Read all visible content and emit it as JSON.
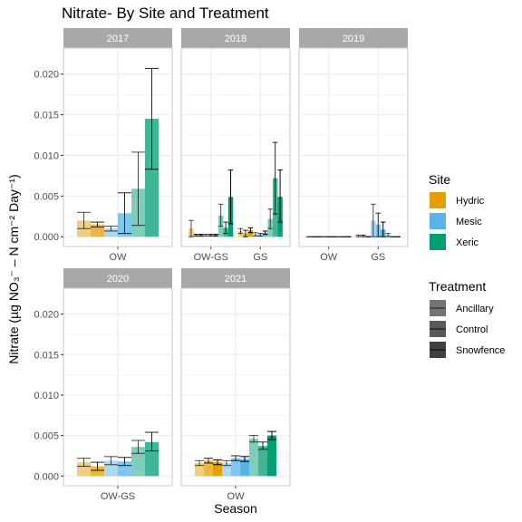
{
  "colors": {
    "Hydric": "#E69F00",
    "Mesic": "#56B4E9",
    "Xeric": "#009E73",
    "strip_bg": "#a8a8a8",
    "grid": "#ebebeb",
    "panel_border": "#c8c8c8"
  },
  "treatment_alpha": {
    "Ancillary": 0.5,
    "Control": 0.75,
    "Snowfence": 1.0
  },
  "chart_data": {
    "type": "bar",
    "title": "Nitrate- By Site and Treatment",
    "xlabel": "Season",
    "ylabel": "Nitrate (µg NO₃⁻ – N cm⁻² Day⁻¹)",
    "ylim": [
      -0.0012,
      0.0232
    ],
    "yticks": [
      0.0,
      0.005,
      0.01,
      0.015,
      0.02
    ],
    "ytick_labels": [
      "0.000",
      "0.005",
      "0.010",
      "0.015",
      "0.020"
    ],
    "grid": true,
    "site_order": [
      "Hydric",
      "Mesic",
      "Xeric"
    ],
    "treatment_order": [
      "Ancillary",
      "Control",
      "Snowfence"
    ],
    "legend_position": "right",
    "legends": {
      "site": {
        "title": "Site",
        "items": [
          "Hydric",
          "Mesic",
          "Xeric"
        ]
      },
      "treatment": {
        "title": "Treatment",
        "items": [
          "Ancillary",
          "Control",
          "Snowfence"
        ]
      }
    },
    "facets": [
      {
        "label": "2017",
        "categories": [
          "OW"
        ],
        "bars": [
          {
            "season": "OW",
            "site": "Hydric",
            "treatment": "Ancillary",
            "value": 0.002,
            "err_low": 0.001,
            "err_high": 0.003
          },
          {
            "season": "OW",
            "site": "Hydric",
            "treatment": "Control",
            "value": 0.0015,
            "err_low": 0.0012,
            "err_high": 0.0018
          },
          {
            "season": "OW",
            "site": "Mesic",
            "treatment": "Ancillary",
            "value": 0.001,
            "err_low": 0.0007,
            "err_high": 0.0013
          },
          {
            "season": "OW",
            "site": "Mesic",
            "treatment": "Control",
            "value": 0.0029,
            "err_low": 0.0004,
            "err_high": 0.0054
          },
          {
            "season": "OW",
            "site": "Xeric",
            "treatment": "Ancillary",
            "value": 0.0059,
            "err_low": 0.0014,
            "err_high": 0.0104
          },
          {
            "season": "OW",
            "site": "Xeric",
            "treatment": "Control",
            "value": 0.0145,
            "err_low": 0.0083,
            "err_high": 0.0207
          }
        ]
      },
      {
        "label": "2018",
        "categories": [
          "OW-GS",
          "GS"
        ],
        "bars": [
          {
            "season": "OW-GS",
            "site": "Hydric",
            "treatment": "Ancillary",
            "value": 0.001,
            "err_low": 0.0,
            "err_high": 0.002
          },
          {
            "season": "OW-GS",
            "site": "Hydric",
            "treatment": "Control",
            "value": 0.0002,
            "err_low": 0.0001,
            "err_high": 0.0003
          },
          {
            "season": "OW-GS",
            "site": "Hydric",
            "treatment": "Snowfence",
            "value": 0.0002,
            "err_low": 0.0001,
            "err_high": 0.0003
          },
          {
            "season": "OW-GS",
            "site": "Mesic",
            "treatment": "Ancillary",
            "value": 0.0002,
            "err_low": 0.0001,
            "err_high": 0.0003
          },
          {
            "season": "OW-GS",
            "site": "Mesic",
            "treatment": "Control",
            "value": 0.0002,
            "err_low": 0.0001,
            "err_high": 0.0003
          },
          {
            "season": "OW-GS",
            "site": "Mesic",
            "treatment": "Snowfence",
            "value": 0.0002,
            "err_low": 0.0001,
            "err_high": 0.0003
          },
          {
            "season": "OW-GS",
            "site": "Xeric",
            "treatment": "Ancillary",
            "value": 0.0026,
            "err_low": 0.0013,
            "err_high": 0.004
          },
          {
            "season": "OW-GS",
            "site": "Xeric",
            "treatment": "Control",
            "value": 0.0011,
            "err_low": 0.0004,
            "err_high": 0.0018
          },
          {
            "season": "OW-GS",
            "site": "Xeric",
            "treatment": "Snowfence",
            "value": 0.0049,
            "err_low": 0.0016,
            "err_high": 0.0082
          },
          {
            "season": "GS",
            "site": "Hydric",
            "treatment": "Ancillary",
            "value": 0.0007,
            "err_low": 0.0004,
            "err_high": 0.001
          },
          {
            "season": "GS",
            "site": "Hydric",
            "treatment": "Control",
            "value": 0.0004,
            "err_low": 0.0,
            "err_high": 0.0008
          },
          {
            "season": "GS",
            "site": "Hydric",
            "treatment": "Snowfence",
            "value": 0.0008,
            "err_low": 0.0005,
            "err_high": 0.0011
          },
          {
            "season": "GS",
            "site": "Mesic",
            "treatment": "Ancillary",
            "value": 0.0003,
            "err_low": 0.0001,
            "err_high": 0.0005
          },
          {
            "season": "GS",
            "site": "Mesic",
            "treatment": "Control",
            "value": 0.0002,
            "err_low": 0.0001,
            "err_high": 0.0004
          },
          {
            "season": "GS",
            "site": "Mesic",
            "treatment": "Snowfence",
            "value": 0.0005,
            "err_low": 0.0003,
            "err_high": 0.0007
          },
          {
            "season": "GS",
            "site": "Xeric",
            "treatment": "Ancillary",
            "value": 0.0022,
            "err_low": 0.001,
            "err_high": 0.0034
          },
          {
            "season": "GS",
            "site": "Xeric",
            "treatment": "Control",
            "value": 0.0072,
            "err_low": 0.0028,
            "err_high": 0.0116
          },
          {
            "season": "GS",
            "site": "Xeric",
            "treatment": "Snowfence",
            "value": 0.0049,
            "err_low": 0.0018,
            "err_high": 0.0082
          }
        ]
      },
      {
        "label": "2019",
        "categories": [
          "OW",
          "GS"
        ],
        "bars": [
          {
            "season": "OW",
            "site": "Hydric",
            "treatment": "Ancillary",
            "value": 0.0,
            "err_low": 0.0,
            "err_high": 0.0
          },
          {
            "season": "OW",
            "site": "Hydric",
            "treatment": "Control",
            "value": 0.0,
            "err_low": 0.0,
            "err_high": 0.0
          },
          {
            "season": "OW",
            "site": "Hydric",
            "treatment": "Snowfence",
            "value": 0.0,
            "err_low": 0.0,
            "err_high": 0.0
          },
          {
            "season": "OW",
            "site": "Mesic",
            "treatment": "Ancillary",
            "value": 0.0,
            "err_low": 0.0,
            "err_high": 0.0
          },
          {
            "season": "OW",
            "site": "Mesic",
            "treatment": "Control",
            "value": 0.0,
            "err_low": 0.0,
            "err_high": 0.0
          },
          {
            "season": "OW",
            "site": "Mesic",
            "treatment": "Snowfence",
            "value": 0.0,
            "err_low": 0.0,
            "err_high": 0.0
          },
          {
            "season": "OW",
            "site": "Xeric",
            "treatment": "Ancillary",
            "value": 0.0,
            "err_low": 0.0,
            "err_high": 0.0
          },
          {
            "season": "OW",
            "site": "Xeric",
            "treatment": "Control",
            "value": 0.0,
            "err_low": 0.0,
            "err_high": 0.0
          },
          {
            "season": "OW",
            "site": "Xeric",
            "treatment": "Snowfence",
            "value": 0.0,
            "err_low": 0.0,
            "err_high": 0.0
          },
          {
            "season": "GS",
            "site": "Hydric",
            "treatment": "Ancillary",
            "value": 0.0001,
            "err_low": 0.0,
            "err_high": 0.0002
          },
          {
            "season": "GS",
            "site": "Hydric",
            "treatment": "Control",
            "value": 0.0001,
            "err_low": 0.0,
            "err_high": 0.0002
          },
          {
            "season": "GS",
            "site": "Hydric",
            "treatment": "Snowfence",
            "value": 0.0,
            "err_low": 0.0,
            "err_high": 0.0
          },
          {
            "season": "GS",
            "site": "Mesic",
            "treatment": "Ancillary",
            "value": 0.002,
            "err_low": 0.0,
            "err_high": 0.004
          },
          {
            "season": "GS",
            "site": "Mesic",
            "treatment": "Control",
            "value": 0.0015,
            "err_low": 0.0,
            "err_high": 0.0029
          },
          {
            "season": "GS",
            "site": "Mesic",
            "treatment": "Snowfence",
            "value": 0.0009,
            "err_low": 0.0,
            "err_high": 0.0018
          },
          {
            "season": "GS",
            "site": "Xeric",
            "treatment": "Ancillary",
            "value": 0.0002,
            "err_low": 0.0,
            "err_high": 0.0004
          },
          {
            "season": "GS",
            "site": "Xeric",
            "treatment": "Control",
            "value": 0.0,
            "err_low": 0.0,
            "err_high": 0.0
          },
          {
            "season": "GS",
            "site": "Xeric",
            "treatment": "Snowfence",
            "value": 0.0,
            "err_low": 0.0,
            "err_high": 0.0
          }
        ]
      },
      {
        "label": "2020",
        "categories": [
          "OW-GS"
        ],
        "bars": [
          {
            "season": "OW-GS",
            "site": "Hydric",
            "treatment": "Ancillary",
            "value": 0.0017,
            "err_low": 0.0012,
            "err_high": 0.0022
          },
          {
            "season": "OW-GS",
            "site": "Hydric",
            "treatment": "Control",
            "value": 0.0012,
            "err_low": 0.0007,
            "err_high": 0.0017
          },
          {
            "season": "OW-GS",
            "site": "Mesic",
            "treatment": "Ancillary",
            "value": 0.0019,
            "err_low": 0.0014,
            "err_high": 0.0024
          },
          {
            "season": "OW-GS",
            "site": "Mesic",
            "treatment": "Control",
            "value": 0.0018,
            "err_low": 0.0013,
            "err_high": 0.0023
          },
          {
            "season": "OW-GS",
            "site": "Xeric",
            "treatment": "Ancillary",
            "value": 0.0036,
            "err_low": 0.0028,
            "err_high": 0.0044
          },
          {
            "season": "OW-GS",
            "site": "Xeric",
            "treatment": "Control",
            "value": 0.0042,
            "err_low": 0.0031,
            "err_high": 0.0054
          }
        ]
      },
      {
        "label": "2021",
        "categories": [
          "OW"
        ],
        "bars": [
          {
            "season": "OW",
            "site": "Hydric",
            "treatment": "Ancillary",
            "value": 0.0016,
            "err_low": 0.0013,
            "err_high": 0.0019
          },
          {
            "season": "OW",
            "site": "Hydric",
            "treatment": "Control",
            "value": 0.0019,
            "err_low": 0.0016,
            "err_high": 0.0022
          },
          {
            "season": "OW",
            "site": "Hydric",
            "treatment": "Snowfence",
            "value": 0.0017,
            "err_low": 0.0014,
            "err_high": 0.002
          },
          {
            "season": "OW",
            "site": "Mesic",
            "treatment": "Ancillary",
            "value": 0.0016,
            "err_low": 0.0013,
            "err_high": 0.0019
          },
          {
            "season": "OW",
            "site": "Mesic",
            "treatment": "Control",
            "value": 0.0022,
            "err_low": 0.0019,
            "err_high": 0.0025
          },
          {
            "season": "OW",
            "site": "Mesic",
            "treatment": "Snowfence",
            "value": 0.0021,
            "err_low": 0.0018,
            "err_high": 0.0024
          },
          {
            "season": "OW",
            "site": "Xeric",
            "treatment": "Ancillary",
            "value": 0.0046,
            "err_low": 0.0042,
            "err_high": 0.005
          },
          {
            "season": "OW",
            "site": "Xeric",
            "treatment": "Control",
            "value": 0.0037,
            "err_low": 0.0033,
            "err_high": 0.0042
          },
          {
            "season": "OW",
            "site": "Xeric",
            "treatment": "Snowfence",
            "value": 0.005,
            "err_low": 0.0045,
            "err_high": 0.0055
          }
        ]
      }
    ]
  }
}
